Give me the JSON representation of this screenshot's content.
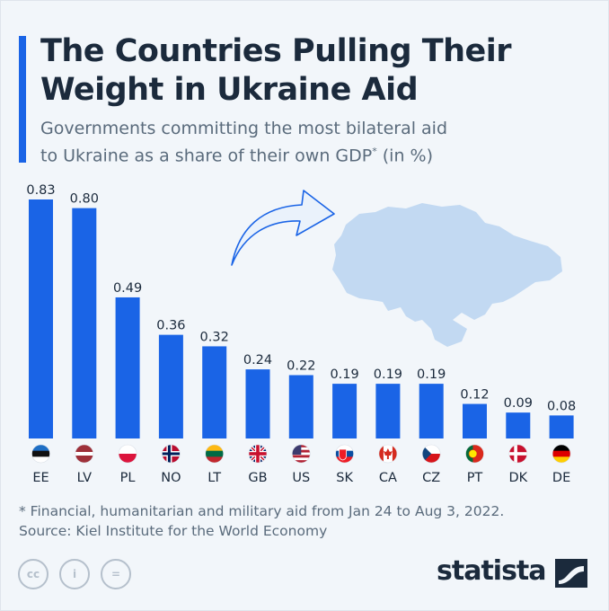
{
  "header": {
    "title_line1": "The Countries Pulling Their",
    "title_line2": "Weight in Ukraine Aid",
    "subtitle_line1": "Governments committing the most bilateral aid",
    "subtitle_line2": "to Ukraine as a share of their own GDP",
    "subtitle_mark": "*",
    "subtitle_suffix": " (in %)"
  },
  "chart_data": {
    "type": "bar",
    "categories": [
      "EE",
      "LV",
      "PL",
      "NO",
      "LT",
      "GB",
      "US",
      "SK",
      "CA",
      "CZ",
      "PT",
      "DK",
      "DE"
    ],
    "values": [
      0.83,
      0.8,
      0.49,
      0.36,
      0.32,
      0.24,
      0.22,
      0.19,
      0.19,
      0.19,
      0.12,
      0.09,
      0.08
    ],
    "value_labels": [
      "0.83",
      "0.80",
      "0.49",
      "0.36",
      "0.32",
      "0.24",
      "0.22",
      "0.19",
      "0.19",
      "0.19",
      "0.12",
      "0.09",
      "0.08"
    ],
    "flags": [
      "estonia-flag",
      "latvia-flag",
      "poland-flag",
      "norway-flag",
      "lithuania-flag",
      "uk-flag",
      "usa-flag",
      "slovakia-flag",
      "canada-flag",
      "czechia-flag",
      "portugal-flag",
      "denmark-flag",
      "germany-flag"
    ],
    "bar_color": "#1a64e6",
    "ylim": [
      0,
      0.83
    ],
    "grid": false,
    "xlabel": "",
    "ylabel": ""
  },
  "colors": {
    "accent": "#1a64e6",
    "map": "#c2d9f2",
    "background": "#f2f6fa"
  },
  "footer": {
    "note": "* Financial, humanitarian and military aid from Jan 24 to Aug 3, 2022.",
    "source": "Source: Kiel Institute for the World Economy",
    "brand": "statista",
    "license_icons": [
      "cc-icon",
      "attribution-icon",
      "no-derivatives-icon"
    ]
  }
}
